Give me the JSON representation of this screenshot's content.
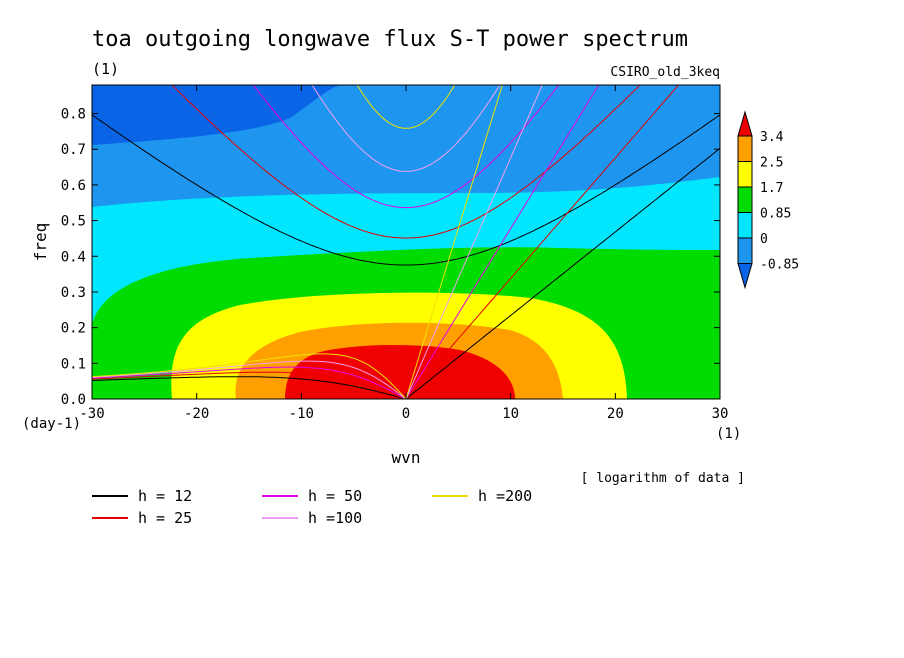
{
  "chart_data": {
    "type": "contour",
    "title": "toa outgoing longwave flux S-T power spectrum",
    "subtitle_left": "(1)",
    "subtitle_right": "CSIRO_old_3keq",
    "xlabel": "wvn",
    "ylabel": "freq",
    "x_unit": "(1)",
    "y_unit": "(day-1)",
    "xlim": [
      -30,
      30
    ],
    "ylim": [
      0,
      0.88
    ],
    "x_ticks": [
      -30,
      -20,
      -10,
      0,
      10,
      20,
      30
    ],
    "y_ticks": [
      0.0,
      0.1,
      0.2,
      0.3,
      0.4,
      0.5,
      0.6,
      0.7,
      0.8
    ],
    "x_tick_labels": [
      "-30",
      "-20",
      "-10",
      "0",
      "10",
      "20",
      "30"
    ],
    "y_tick_labels": [
      "0.0",
      "0.1",
      "0.2",
      "0.3",
      "0.4",
      "0.5",
      "0.6",
      "0.7",
      "0.8"
    ],
    "note": "[ logarithm of data ]",
    "colorbar": {
      "levels": [
        -0.85,
        0,
        0.85,
        1.7,
        2.5,
        3.4
      ],
      "labels": [
        "3.4",
        "2.5",
        "1.7",
        "0.85",
        "0",
        "-0.85"
      ],
      "colors": [
        "#0a64e6",
        "#1e96f0",
        "#00e6ff",
        "#00dc00",
        "#ffff00",
        "#ffa000",
        "#f00000"
      ]
    },
    "dispersion_curves": [
      {
        "label": "h = 12",
        "h": 12,
        "color": "#000000"
      },
      {
        "label": "h = 25",
        "h": 25,
        "color": "#e60000"
      },
      {
        "label": "h = 50",
        "h": 50,
        "color": "#e600e6"
      },
      {
        "label": "h =100",
        "h": 100,
        "color": "#f0a0f0"
      },
      {
        "label": "h =200",
        "h": 200,
        "color": "#f0e000"
      }
    ]
  }
}
